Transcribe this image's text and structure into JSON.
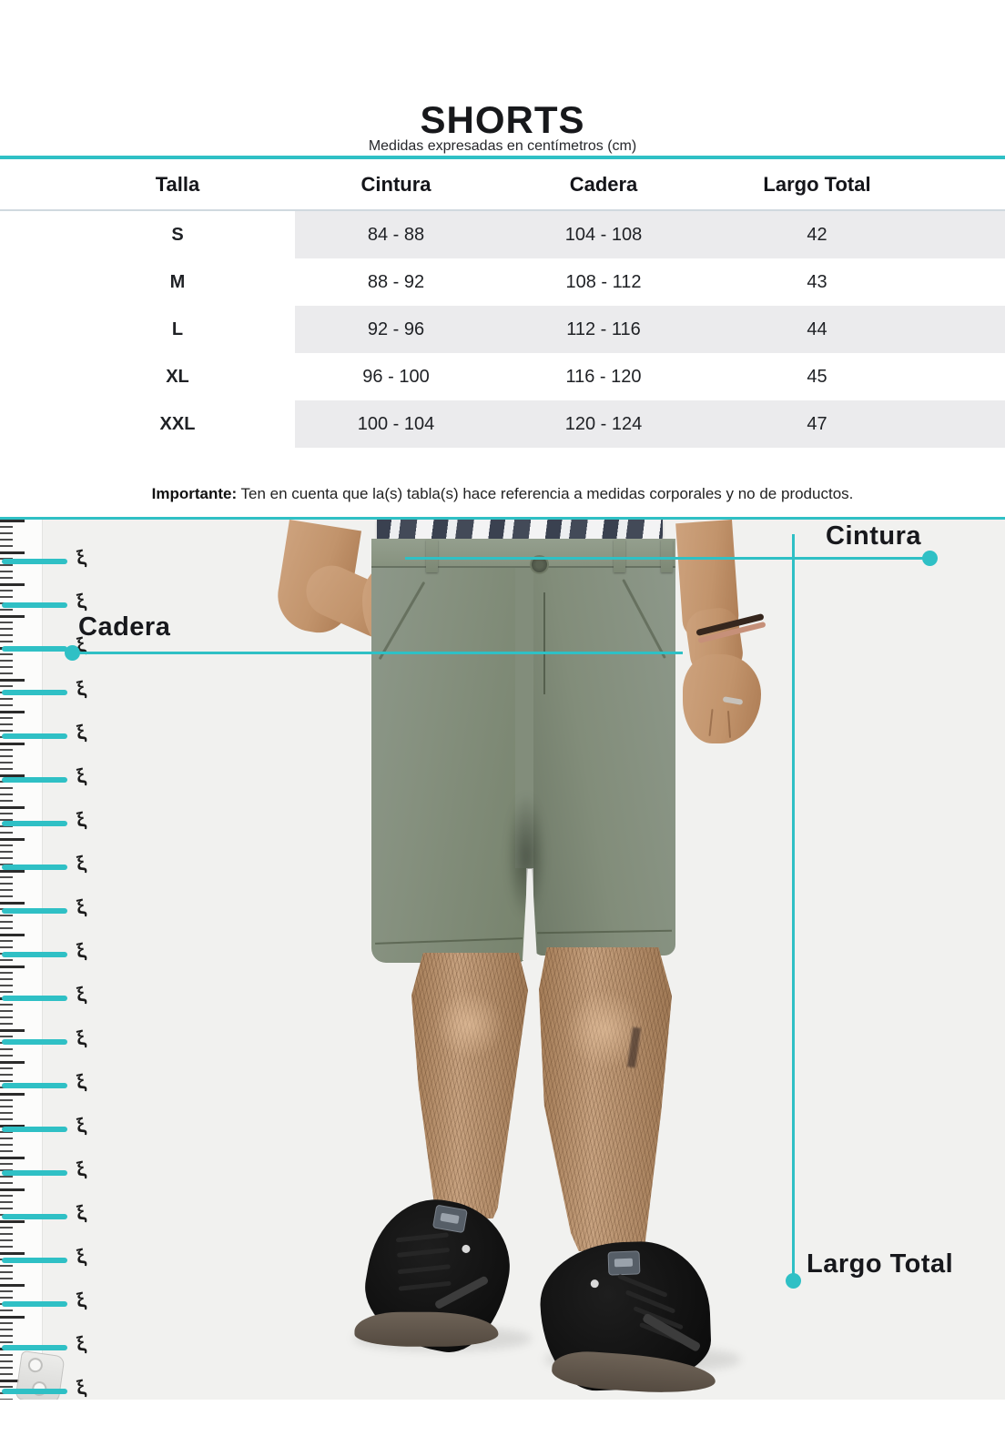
{
  "header": {
    "title": "SHORTS",
    "subtitle": "Medidas expresadas en centímetros (cm)"
  },
  "table": {
    "headers": [
      "Talla",
      "Cintura",
      "Cadera",
      "Largo Total"
    ],
    "rows": [
      [
        "S",
        "84 - 88",
        "104 - 108",
        "42"
      ],
      [
        "M",
        "88 - 92",
        "108 - 112",
        "43"
      ],
      [
        "L",
        "92 - 96",
        "112 - 116",
        "44"
      ],
      [
        "XL",
        "96 - 100",
        "116 - 120",
        "45"
      ],
      [
        "XXL",
        "100 - 104",
        "120 - 124",
        "47"
      ]
    ]
  },
  "note": {
    "label": "Importante:",
    "text": " Ten en cuenta que la(s) tabla(s) hace referencia a medidas corporales y no de productos."
  },
  "figure": {
    "labels": {
      "waist": "Cintura",
      "hip": "Cadera",
      "length": "Largo Total"
    },
    "tape_glyph": "ξ"
  },
  "colors": {
    "accent": "#2fc0c5",
    "row_shade": "#ebebed",
    "photo_background": "#f1f1ef",
    "shorts_green": "#87917f"
  }
}
